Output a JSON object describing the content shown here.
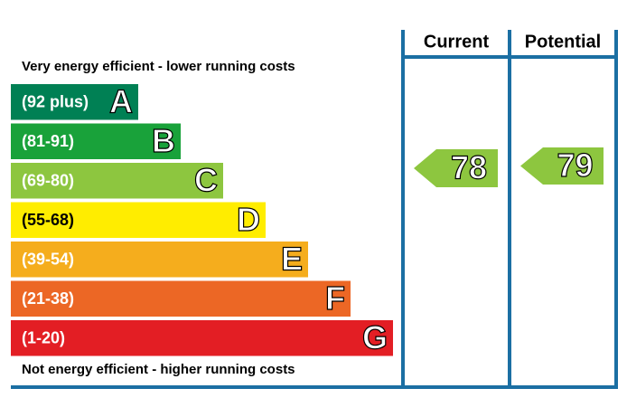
{
  "headers": [
    "Current",
    "Potential"
  ],
  "top_label": "Very energy efficient - lower running costs",
  "bottom_label": "Not energy efficient - higher running costs",
  "bands": [
    {
      "range": "(92 plus)",
      "letter": "A",
      "color": "#008054",
      "text_color": "#ffffff"
    },
    {
      "range": "(81-91)",
      "letter": "B",
      "color": "#19a23a",
      "text_color": "#ffffff"
    },
    {
      "range": "(69-80)",
      "letter": "C",
      "color": "#8dc63f",
      "text_color": "#ffffff"
    },
    {
      "range": "(55-68)",
      "letter": "D",
      "color": "#ffed00",
      "text_color": "#000000"
    },
    {
      "range": "(39-54)",
      "letter": "E",
      "color": "#f5ad1d",
      "text_color": "#ffffff"
    },
    {
      "range": "(21-38)",
      "letter": "F",
      "color": "#ec6725",
      "text_color": "#ffffff"
    },
    {
      "range": "(1-20)",
      "letter": "G",
      "color": "#e31e24",
      "text_color": "#ffffff"
    }
  ],
  "current": {
    "value": 78,
    "color": "#8dc63f"
  },
  "potential": {
    "value": 79,
    "color": "#8dc63f"
  }
}
